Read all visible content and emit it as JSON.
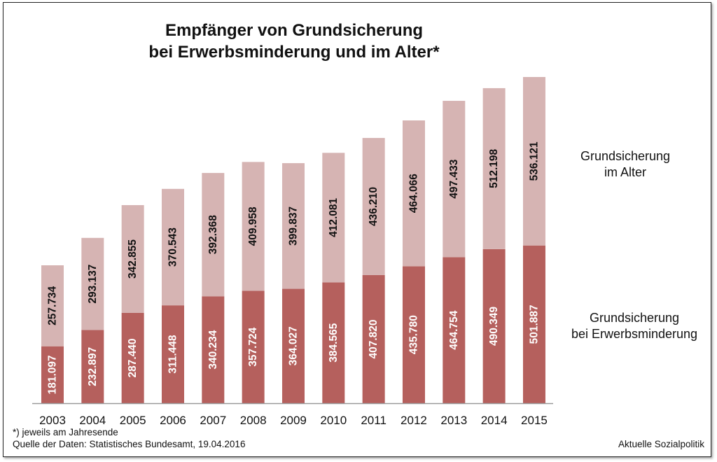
{
  "chart_data": {
    "type": "bar",
    "stacked": true,
    "title": "Empfänger von Grundsicherung bei Erwerbsminderung und im Alter*",
    "title_lines": [
      "Empfänger von Grundsicherung",
      "bei Erwerbsminderung und im Alter*"
    ],
    "xlabel": "",
    "ylabel": "",
    "categories": [
      "2003",
      "2004",
      "2005",
      "2006",
      "2007",
      "2008",
      "2009",
      "2010",
      "2011",
      "2012",
      "2013",
      "2014",
      "2015"
    ],
    "series": [
      {
        "name": "Grundsicherung bei Erwerbsminderung",
        "legend_lines": [
          "Grundsicherung",
          "bei Erwerbsminderung"
        ],
        "color": "#b5605d",
        "label_color": "#ffffff",
        "values": [
          181097,
          232897,
          287440,
          311448,
          340234,
          357724,
          364027,
          384565,
          407820,
          435780,
          464754,
          490349,
          501887
        ],
        "labels": [
          "181.097",
          "232.897",
          "287.440",
          "311.448",
          "340.234",
          "357.724",
          "364.027",
          "384.565",
          "407.820",
          "435.780",
          "464.754",
          "490.349",
          "501.887"
        ]
      },
      {
        "name": "Grundsicherung im Alter",
        "legend_lines": [
          "Grundsicherung",
          "im Alter"
        ],
        "color": "#d6b4b3",
        "label_color": "#111111",
        "values": [
          257734,
          293137,
          342855,
          370543,
          392368,
          409958,
          399837,
          412081,
          436210,
          464066,
          497433,
          512198,
          536121
        ],
        "labels": [
          "257.734",
          "293.137",
          "342.855",
          "370.543",
          "392.368",
          "409.958",
          "399.837",
          "412.081",
          "436.210",
          "464.066",
          "497.433",
          "512.198",
          "536.121"
        ]
      }
    ],
    "ylim": [
      0,
      1038008
    ],
    "grid": false,
    "legend_position": "right",
    "axis_color": "#9a9a9a"
  },
  "footnotes": {
    "note": "*) jeweils am Jahresende",
    "source": "Quelle der Daten: Statistisches Bundesamt, 19.04.2016",
    "credit": "Aktuelle Sozialpolitik"
  }
}
